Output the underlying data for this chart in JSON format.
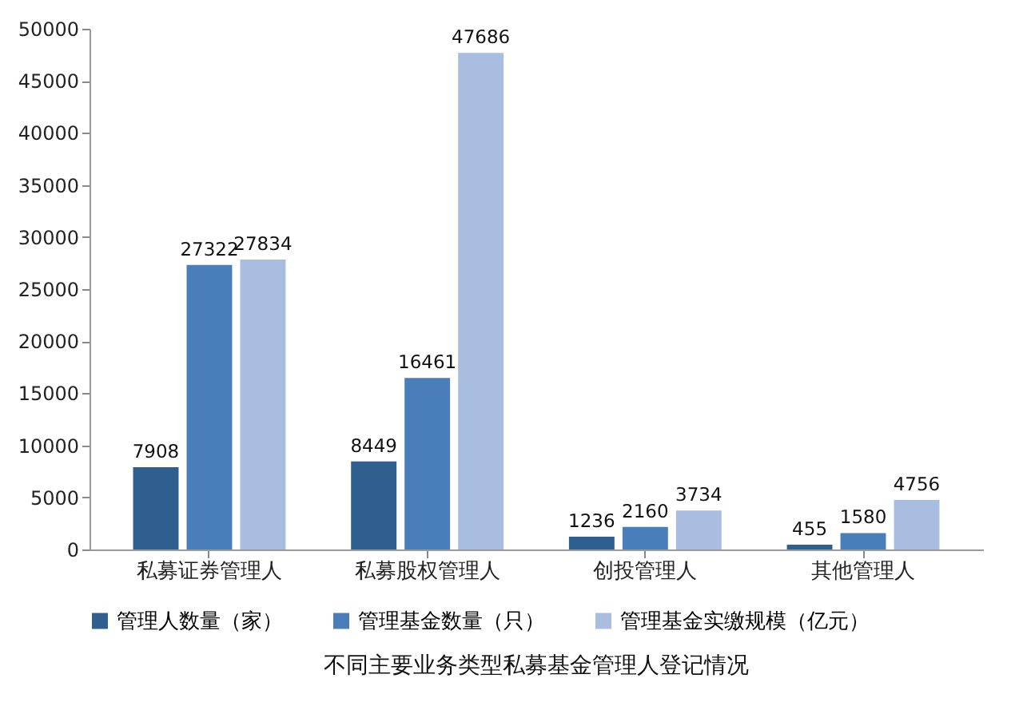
{
  "chart_data": {
    "type": "bar",
    "title": "不同主要业务类型私募基金管理人登记情况",
    "categories": [
      "私募证券管理人",
      "私募股权管理人",
      "创投管理人",
      "其他管理人"
    ],
    "series": [
      {
        "name": "管理人数量（家）",
        "color": "#2f5f8f",
        "values": [
          7908,
          8449,
          1236,
          455
        ]
      },
      {
        "name": "管理基金数量（只）",
        "color": "#4a7ebb",
        "values": [
          27322,
          16461,
          2160,
          1580
        ]
      },
      {
        "name": "管理基金实缴规模（亿元）",
        "color": "#a9bde0",
        "values": [
          27834,
          47686,
          3734,
          4756
        ]
      }
    ],
    "ylim": [
      0,
      50000
    ],
    "yticks": [
      0,
      5000,
      10000,
      15000,
      20000,
      25000,
      30000,
      35000,
      40000,
      45000,
      50000
    ],
    "grid": false,
    "legend": "bottom",
    "data_labels": true
  }
}
